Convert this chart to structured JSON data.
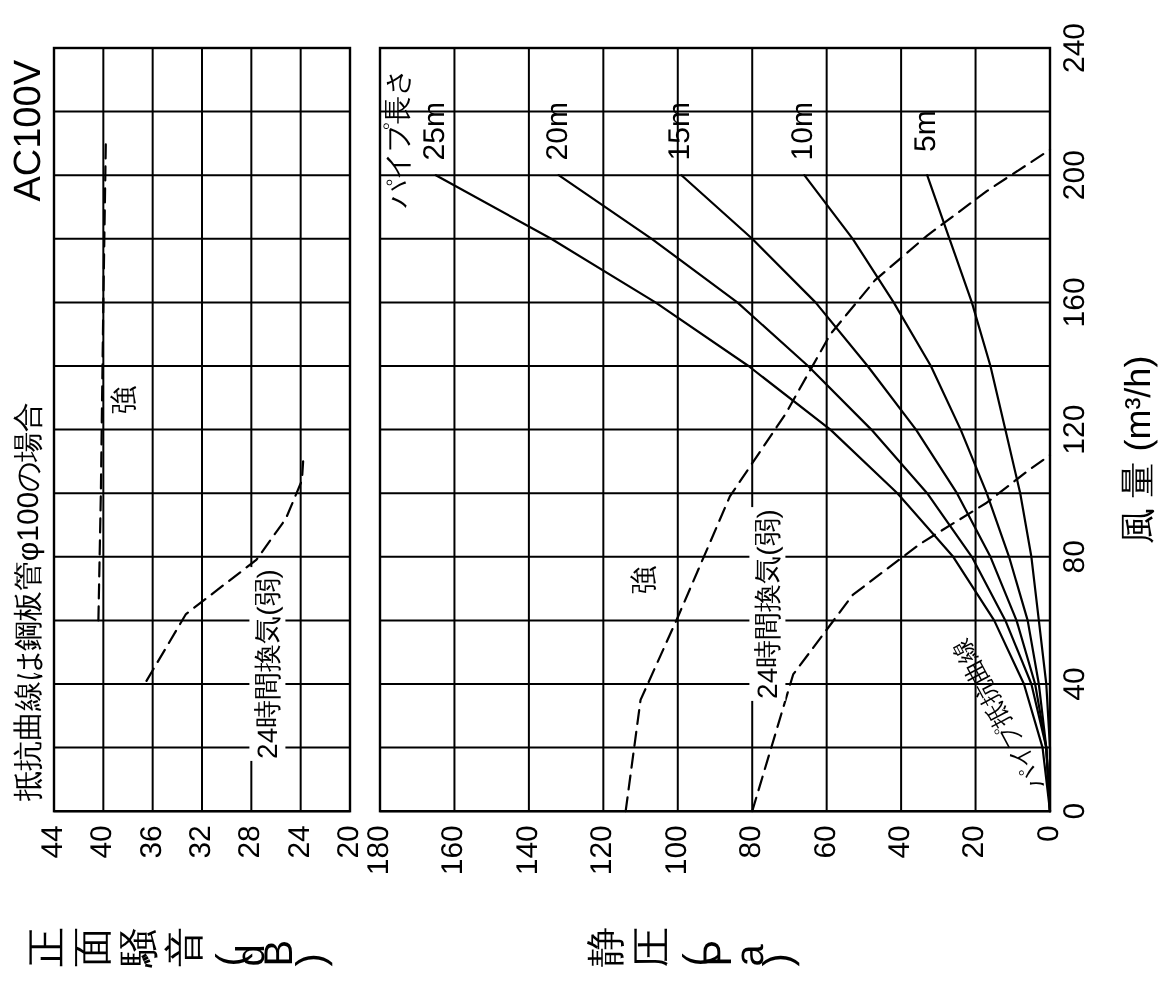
{
  "chart_data": [
    {
      "type": "line",
      "title": "抵抗曲線は鋼板管φ100の場合",
      "xlabel": "正面騒音(dB)",
      "xlim": [
        44,
        20
      ],
      "xticks": [
        44,
        40,
        36,
        32,
        28,
        24,
        20
      ],
      "ylim": [
        0,
        240
      ],
      "yticks": [
        {
          "value": 0,
          "label": null
        },
        {
          "value": 20,
          "label": null
        },
        {
          "value": 40,
          "label": null
        },
        {
          "value": 60,
          "label": null
        },
        {
          "value": 80,
          "label": null
        },
        {
          "value": 100,
          "label": null
        },
        {
          "value": 120,
          "label": null
        },
        {
          "value": 140,
          "label": null
        },
        {
          "value": 160,
          "label": null
        },
        {
          "value": 180,
          "label": null
        },
        {
          "value": 200,
          "label": null
        },
        {
          "value": 220,
          "label": null
        },
        {
          "value": 240,
          "label": null
        }
      ],
      "tick_labels": "x",
      "grid": true,
      "annotations": [
        "AC100V",
        "強",
        "24時間換気(弱)"
      ],
      "series": [
        {
          "color": "#000000",
          "line_style": "dashed",
          "x": [
            40.4,
            40.2,
            40,
            39.8
          ],
          "values": [
            60,
            100,
            160,
            210
          ]
        },
        {
          "color": "#000000",
          "line_style": "dashed",
          "x": [
            36.5,
            33.3,
            27.6,
            25.2,
            23.9,
            23.8
          ],
          "values": [
            41,
            62,
            79,
            92,
            104,
            110
          ]
        }
      ]
    },
    {
      "type": "line",
      "xlabel": "静圧(Pa)",
      "ylabel": "風 量 (m³/h)",
      "xlim": [
        180,
        0
      ],
      "xticks": [
        180,
        160,
        140,
        120,
        100,
        80,
        60,
        40,
        20,
        0
      ],
      "ylim": [
        0,
        240
      ],
      "yticks": [
        0,
        {
          "value": 20,
          "label": null
        },
        40,
        {
          "value": 60,
          "label": null
        },
        80,
        {
          "value": 100,
          "label": null
        },
        120,
        {
          "value": 140,
          "label": null
        },
        160,
        {
          "value": 180,
          "label": null
        },
        200,
        {
          "value": 220,
          "label": null
        },
        240
      ],
      "grid": true,
      "annotations": [
        "パイプ長さ",
        "パイプ抵抗曲線",
        "強",
        "24時間換気(弱)"
      ],
      "series": [
        {
          "name": "25m",
          "color": "#000000",
          "line_style": "solid",
          "x": [
            0,
            2,
            7,
            15,
            26,
            41,
            59,
            81,
            106,
            134,
            165
          ],
          "values": [
            0,
            20,
            40,
            60,
            80,
            100,
            120,
            140,
            160,
            180,
            200
          ]
        },
        {
          "name": "20m",
          "color": "#000000",
          "line_style": "solid",
          "x": [
            0,
            1,
            5,
            12,
            21,
            33,
            48,
            65,
            84,
            107,
            132
          ],
          "values": [
            0,
            20,
            40,
            60,
            80,
            100,
            120,
            140,
            160,
            180,
            200
          ]
        },
        {
          "name": "15m",
          "color": "#000000",
          "line_style": "solid",
          "x": [
            0,
            1,
            4,
            9,
            16,
            25,
            36,
            49,
            63,
            80,
            99
          ],
          "values": [
            0,
            20,
            40,
            60,
            80,
            100,
            120,
            140,
            160,
            180,
            200
          ]
        },
        {
          "name": "10m",
          "color": "#000000",
          "line_style": "solid",
          "x": [
            0,
            1,
            3,
            6,
            11,
            17,
            24,
            32,
            42,
            53,
            66
          ],
          "values": [
            0,
            20,
            40,
            60,
            80,
            100,
            120,
            140,
            160,
            180,
            200
          ]
        },
        {
          "name": "5m",
          "color": "#000000",
          "line_style": "solid",
          "x": [
            0,
            0,
            1,
            3,
            5,
            8,
            12,
            16,
            21,
            27,
            33
          ],
          "values": [
            0,
            20,
            40,
            60,
            80,
            100,
            120,
            140,
            160,
            180,
            200
          ]
        },
        {
          "color": "#000000",
          "line_style": "dashed",
          "x": [
            114,
            110,
            100,
            86,
            71,
            59,
            47,
            33,
            17,
            0
          ],
          "values": [
            0,
            35,
            61,
            99,
            125,
            150,
            167,
            181,
            195,
            208
          ]
        },
        {
          "color": "#000000",
          "line_style": "dashed",
          "x": [
            80,
            69,
            53,
            35,
            17,
            6,
            0
          ],
          "values": [
            0,
            43,
            68,
            84,
            97,
            107,
            112
          ]
        }
      ]
    }
  ]
}
